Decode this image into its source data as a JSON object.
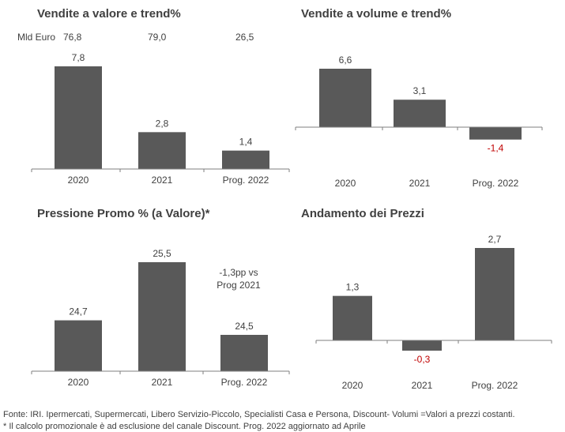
{
  "colors": {
    "bar": "#595959",
    "axis": "#7f7f7f",
    "text": "#404040",
    "negative_label": "#c00000"
  },
  "chart_data": [
    {
      "type": "bar",
      "title": "Vendite a valore e trend%",
      "categories": [
        "2020",
        "2021",
        "Prog. 2022"
      ],
      "values": [
        7.8,
        2.8,
        1.4
      ],
      "labels": [
        "7,8",
        "2,8",
        "1,4"
      ],
      "topline": {
        "prefix": "Mld Euro",
        "values": [
          "76,8",
          "79,0",
          "26,5"
        ]
      },
      "ylim": [
        0,
        7.8
      ]
    },
    {
      "type": "bar",
      "title": "Vendite a volume e trend%",
      "categories": [
        "2020",
        "2021",
        "Prog. 2022"
      ],
      "values": [
        6.6,
        3.1,
        -1.4
      ],
      "labels": [
        "6,6",
        "3,1",
        "-1,4"
      ],
      "ylim": [
        -1.4,
        6.6
      ]
    },
    {
      "type": "bar",
      "title": "Pressione Promo % (a Valore)*",
      "categories": [
        "2020",
        "2021",
        "Prog. 2022"
      ],
      "values": [
        24.7,
        25.5,
        24.5
      ],
      "labels": [
        "24,7",
        "25,5",
        "24,5"
      ],
      "annotation": [
        "-1,3pp vs",
        "Prog 2021"
      ]
    },
    {
      "type": "bar",
      "title": "Andamento dei Prezzi",
      "categories": [
        "2020",
        "2021",
        "Prog. 2022"
      ],
      "values": [
        1.3,
        -0.3,
        2.7
      ],
      "labels": [
        "1,3",
        "-0,3",
        "2,7"
      ],
      "ylim": [
        -0.3,
        2.7
      ]
    }
  ],
  "footer": {
    "line1": "Fonte: IRI. Ipermercati, Supermercati, Libero Servizio-Piccolo, Specialisti Casa e Persona, Discount-  Volumi =Valori a prezzi costanti.",
    "line2": "* Il calcolo promozionale è ad esclusione del canale Discount. Prog. 2022 aggiornato ad Aprile"
  }
}
